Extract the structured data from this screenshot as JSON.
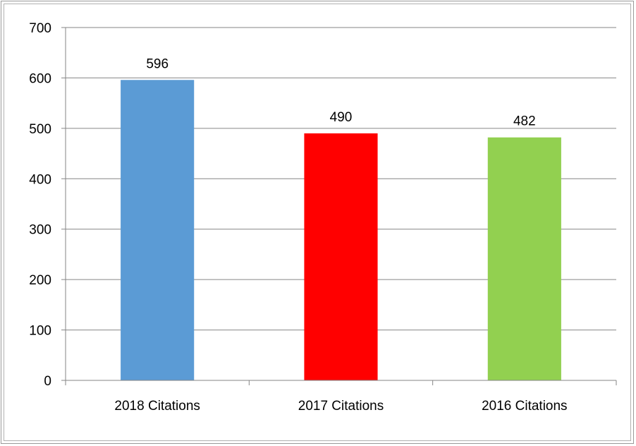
{
  "chart_data": {
    "type": "bar",
    "title": "",
    "xlabel": "",
    "ylabel": "",
    "categories": [
      "2018 Citations",
      "2017 Citations",
      "2016 Citations"
    ],
    "values": [
      596,
      490,
      482
    ],
    "bar_colors": [
      "#5B9BD5",
      "#FF0000",
      "#92D050"
    ],
    "ylim": [
      0,
      700
    ],
    "yticks": [
      0,
      100,
      200,
      300,
      400,
      500,
      600,
      700
    ],
    "grid": true,
    "legend": "none",
    "data_labels": true
  }
}
